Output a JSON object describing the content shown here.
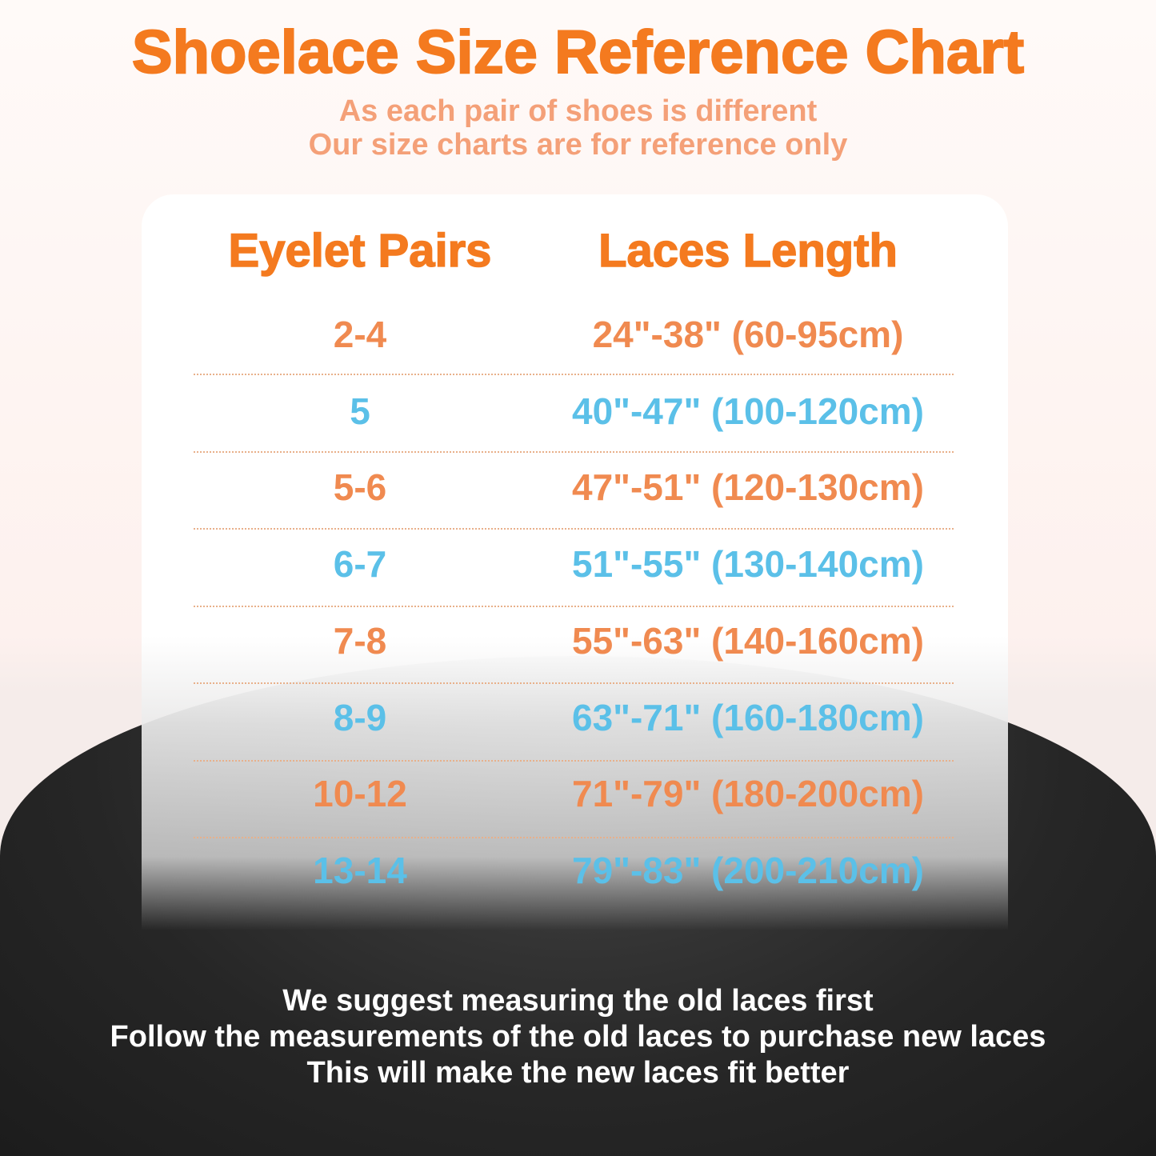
{
  "title": "Shoelace Size Reference Chart",
  "subtitle": [
    "As each pair of shoes is different",
    "Our size charts are for reference only"
  ],
  "table": {
    "headers": [
      "Eyelet Pairs",
      "Laces Length"
    ],
    "rows": [
      {
        "eyelets": "2-4",
        "length": "24\"-38\" (60-95cm)",
        "color": "#f08a50"
      },
      {
        "eyelets": "5",
        "length": "40\"-47\" (100-120cm)",
        "color": "#5bc0e8"
      },
      {
        "eyelets": "5-6",
        "length": "47\"-51\" (120-130cm)",
        "color": "#f08a50"
      },
      {
        "eyelets": "6-7",
        "length": "51\"-55\" (130-140cm)",
        "color": "#5bc0e8"
      },
      {
        "eyelets": "7-8",
        "length": "55\"-63\" (140-160cm)",
        "color": "#f08a50"
      },
      {
        "eyelets": "8-9",
        "length": "63\"-71\" (160-180cm)",
        "color": "#5bc0e8"
      },
      {
        "eyelets": "10-12",
        "length": "71\"-79\" (180-200cm)",
        "color": "#f08a50"
      },
      {
        "eyelets": "13-14",
        "length": "79\"-83\" (200-210cm)",
        "color": "#5bc0e8"
      }
    ]
  },
  "footer": [
    "We suggest measuring the old laces first",
    "Follow the measurements of the old laces to purchase new laces",
    "This will make the new laces fit better"
  ],
  "colors": {
    "title": "#f47a1f",
    "orange": "#f08a50",
    "blue": "#5bc0e8"
  }
}
